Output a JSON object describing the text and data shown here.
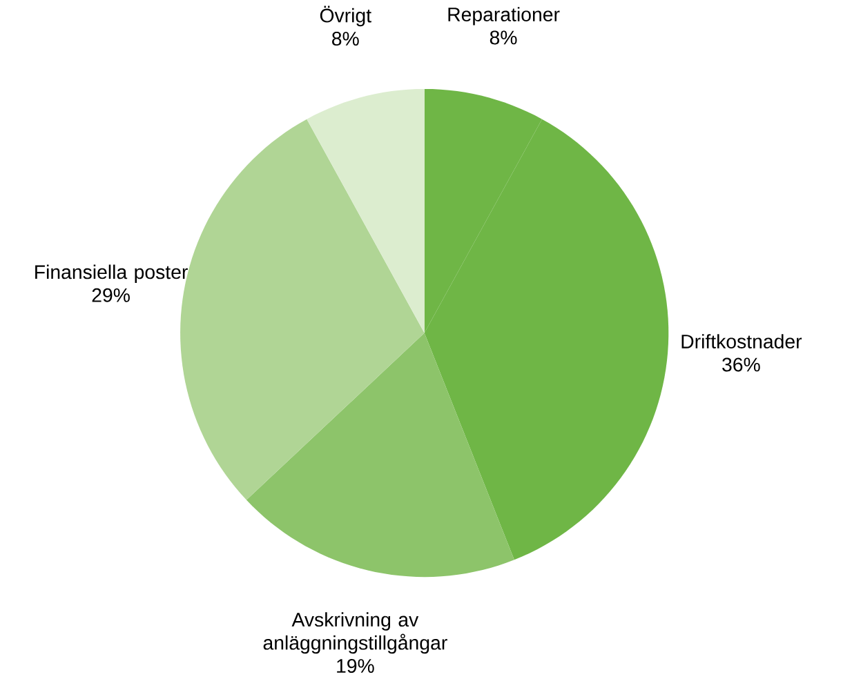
{
  "chart_data": {
    "type": "pie",
    "categories": [
      "Reparationer",
      "Driftkostnader",
      "Avskrivning av anläggningstillgångar",
      "Finansiella poster",
      "Övrigt"
    ],
    "values": [
      8,
      36,
      19,
      29,
      8
    ],
    "value_labels": [
      "8%",
      "36%",
      "19%",
      "29%",
      "8%"
    ],
    "colors": [
      "#6fb646",
      "#6fb646",
      "#8dc46a",
      "#b0d595",
      "#dcedcf"
    ]
  }
}
